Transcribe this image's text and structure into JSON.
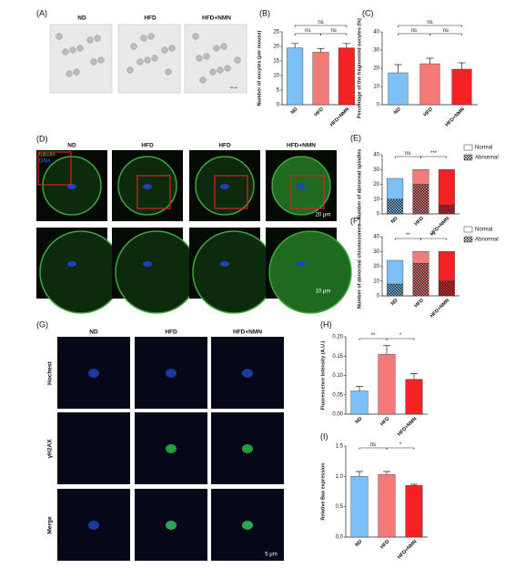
{
  "panel_a": {
    "label": "(A)",
    "columns": [
      "ND",
      "HFD",
      "HFD+NMN"
    ],
    "scale": "10 μm"
  },
  "panel_d": {
    "label": "(D)",
    "columns": [
      "ND",
      "HFD",
      "HFD",
      "HFD+NMN"
    ],
    "stains": [
      "tubulin",
      "DNA"
    ],
    "scales": [
      "20 μm",
      "10 μm"
    ]
  },
  "panel_g": {
    "label": "(G)",
    "columns": [
      "ND",
      "HFD",
      "HFD+NMN"
    ],
    "rows": [
      "Hochest",
      "γH2AX",
      "Merge"
    ],
    "scale": "5 μm"
  },
  "chart_data": [
    {
      "type": "bar",
      "panel_label": "(B)",
      "y_label": "Number of oocytes (per mouse)",
      "categories": [
        "ND",
        "HFD",
        "HFD+NMN"
      ],
      "values": [
        19.5,
        18,
        19.5
      ],
      "errors": [
        1.5,
        1.3,
        1.5
      ],
      "colors": [
        "#7ec0f5",
        "#f47a7a",
        "#f42222"
      ],
      "ylim": [
        0,
        25
      ],
      "yticks": [
        0,
        5,
        10,
        15,
        20,
        25
      ],
      "significance": [
        {
          "from": 0,
          "to": 1,
          "label": "ns"
        },
        {
          "from": 1,
          "to": 2,
          "label": "ns"
        },
        {
          "from": 0,
          "to": 2,
          "label": "ns"
        }
      ]
    },
    {
      "type": "bar",
      "panel_label": "(C)",
      "y_label": "Percentage of the fragmented oocytes (%)",
      "categories": [
        "ND",
        "HFD",
        "HFD+NMN"
      ],
      "values": [
        17.5,
        22.5,
        19.5
      ],
      "errors": [
        4.5,
        3,
        3.5
      ],
      "colors": [
        "#7ec0f5",
        "#f47a7a",
        "#f42222"
      ],
      "ylim": [
        0,
        40
      ],
      "yticks": [
        0,
        10,
        20,
        30,
        40
      ],
      "significance": [
        {
          "from": 0,
          "to": 1,
          "label": "ns"
        },
        {
          "from": 1,
          "to": 2,
          "label": "ns"
        },
        {
          "from": 0,
          "to": 2,
          "label": "ns"
        }
      ]
    },
    {
      "type": "stacked_bar",
      "panel_label": "(E)",
      "y_label": "Number of abnormal spindles",
      "categories": [
        "ND",
        "HFD",
        "HFD+NMN"
      ],
      "colors": [
        "#7ec0f5",
        "#f47a7a",
        "#f42222"
      ],
      "series": [
        {
          "name": "Abnormal",
          "hatch": true,
          "values": [
            10,
            20,
            6
          ]
        },
        {
          "name": "Normal",
          "hatch": false,
          "values": [
            14,
            10,
            24
          ]
        }
      ],
      "ylim": [
        0,
        40
      ],
      "yticks": [
        0,
        10,
        20,
        30,
        40
      ],
      "significance": [
        {
          "from": 0,
          "to": 1,
          "label": "ns"
        },
        {
          "from": 1,
          "to": 2,
          "label": "***"
        }
      ]
    },
    {
      "type": "stacked_bar",
      "panel_label": "(F)",
      "y_label": "Number of abnormal chromosomes",
      "categories": [
        "ND",
        "HFD",
        "HFD+NMN"
      ],
      "colors": [
        "#7ec0f5",
        "#f47a7a",
        "#f42222"
      ],
      "series": [
        {
          "name": "Abnormal",
          "hatch": true,
          "values": [
            8,
            22,
            10
          ]
        },
        {
          "name": "Normal",
          "hatch": false,
          "values": [
            16,
            8,
            20
          ]
        }
      ],
      "ylim": [
        0,
        40
      ],
      "yticks": [
        0,
        10,
        20,
        30,
        40
      ],
      "significance": [
        {
          "from": 0,
          "to": 1,
          "label": "**"
        },
        {
          "from": 1,
          "to": 2,
          "label": "**"
        }
      ]
    },
    {
      "type": "bar",
      "panel_label": "(H)",
      "y_label": "Fluorescence intensity (A.U.)",
      "categories": [
        "ND",
        "HFD",
        "HFD+NMN"
      ],
      "values": [
        0.06,
        0.155,
        0.09
      ],
      "errors": [
        0.012,
        0.022,
        0.015
      ],
      "colors": [
        "#7ec0f5",
        "#f47a7a",
        "#f42222"
      ],
      "ylim": [
        0,
        0.2
      ],
      "yticks": [
        {
          "value": 0,
          "label": "0.00"
        },
        {
          "value": 0.05,
          "label": "0.05"
        },
        {
          "value": 0.1,
          "label": "0.10"
        },
        {
          "value": 0.15,
          "label": "0.15"
        },
        {
          "value": 0.2,
          "label": "0.20"
        }
      ],
      "significance": [
        {
          "from": 0,
          "to": 1,
          "label": "**"
        },
        {
          "from": 1,
          "to": 2,
          "label": "*"
        }
      ]
    },
    {
      "type": "bar",
      "panel_label": "(I)",
      "y_label": "Relative Bax expression",
      "categories": [
        "ND",
        "HFD",
        "HFD+NMN"
      ],
      "values": [
        1.0,
        1.03,
        0.85
      ],
      "errors": [
        0.08,
        0.05,
        0.02
      ],
      "colors": [
        "#7ec0f5",
        "#f47a7a",
        "#f42222"
      ],
      "ylim": [
        0,
        1.5
      ],
      "yticks": [
        {
          "value": 0,
          "label": "0.0"
        },
        {
          "value": 0.5,
          "label": "0.5"
        },
        {
          "value": 1,
          "label": "1.0"
        },
        {
          "value": 1.5,
          "label": "1.5"
        }
      ],
      "significance": [
        {
          "from": 0,
          "to": 1,
          "label": "ns"
        },
        {
          "from": 1,
          "to": 2,
          "label": "*"
        }
      ]
    }
  ]
}
